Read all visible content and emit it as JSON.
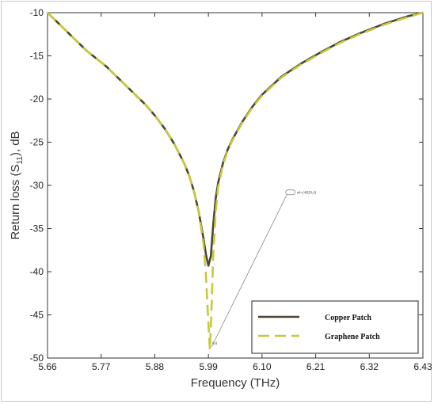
{
  "chart_data": {
    "type": "line",
    "xlabel": "Frequency (THz)",
    "ylabel_main": "Return loss (S",
    "ylabel_sub": "11",
    "ylabel_tail": "), dB",
    "xlim": [
      5.66,
      6.43
    ],
    "ylim": [
      -50,
      -10
    ],
    "xticks": [
      5.66,
      5.77,
      5.88,
      5.99,
      6.1,
      6.21,
      6.32,
      6.43
    ],
    "xtick_labels": [
      "5.66",
      "5.77",
      "5.88",
      "5.99",
      "6.10",
      "6.21",
      "6.32",
      "6.43"
    ],
    "yticks": [
      -10,
      -15,
      -20,
      -25,
      -30,
      -35,
      -40,
      -45,
      -50
    ],
    "ytick_labels": [
      "-10",
      "-15",
      "-20",
      "-25",
      "-30",
      "-35",
      "-40",
      "-45",
      "-50"
    ],
    "grid": false,
    "legend_position": "bottom-right",
    "series": [
      {
        "name": "Copper Patch",
        "color": "#4a4632",
        "style": "solid",
        "x": [
          5.66,
          5.7,
          5.74,
          5.78,
          5.82,
          5.86,
          5.88,
          5.9,
          5.92,
          5.94,
          5.95,
          5.96,
          5.97,
          5.98,
          5.985,
          5.99,
          5.995,
          6.0,
          6.005,
          6.01,
          6.02,
          6.03,
          6.04,
          6.06,
          6.08,
          6.1,
          6.14,
          6.18,
          6.22,
          6.26,
          6.3,
          6.35,
          6.4,
          6.43
        ],
        "y": [
          -10.0,
          -12.2,
          -14.4,
          -16.2,
          -18.4,
          -20.6,
          -21.9,
          -23.4,
          -25.2,
          -27.4,
          -28.8,
          -30.6,
          -33.0,
          -36.2,
          -38.0,
          -39.3,
          -38.2,
          -34.5,
          -31.5,
          -29.7,
          -27.4,
          -25.8,
          -24.6,
          -22.6,
          -20.9,
          -19.5,
          -17.4,
          -15.9,
          -14.6,
          -13.4,
          -12.4,
          -11.3,
          -10.4,
          -10.0
        ]
      },
      {
        "name": "Graphene Patch",
        "color": "#c8c83c",
        "style": "dashed",
        "x": [
          5.66,
          5.7,
          5.74,
          5.78,
          5.82,
          5.86,
          5.88,
          5.9,
          5.92,
          5.94,
          5.95,
          5.96,
          5.97,
          5.98,
          5.985,
          5.99,
          5.993,
          5.995,
          6.0,
          6.005,
          6.01,
          6.02,
          6.03,
          6.04,
          6.06,
          6.08,
          6.1,
          6.14,
          6.18,
          6.22,
          6.26,
          6.3,
          6.35,
          6.4,
          6.43
        ],
        "y": [
          -10.0,
          -12.2,
          -14.4,
          -16.2,
          -18.4,
          -20.6,
          -21.9,
          -23.4,
          -25.2,
          -27.4,
          -28.8,
          -30.6,
          -33.0,
          -36.8,
          -40.5,
          -46.0,
          -49.0,
          -46.5,
          -38.0,
          -33.0,
          -30.2,
          -27.6,
          -25.9,
          -24.7,
          -22.7,
          -21.0,
          -19.6,
          -17.5,
          -16.0,
          -14.7,
          -13.5,
          -12.5,
          -11.4,
          -10.5,
          -10.0
        ]
      }
    ],
    "annotation": {
      "text": "a4=(4828,4)",
      "point": [
        5.993,
        -49.0
      ],
      "label_at": [
        6.155,
        -30.8
      ],
      "marker_label": "0.0"
    }
  }
}
